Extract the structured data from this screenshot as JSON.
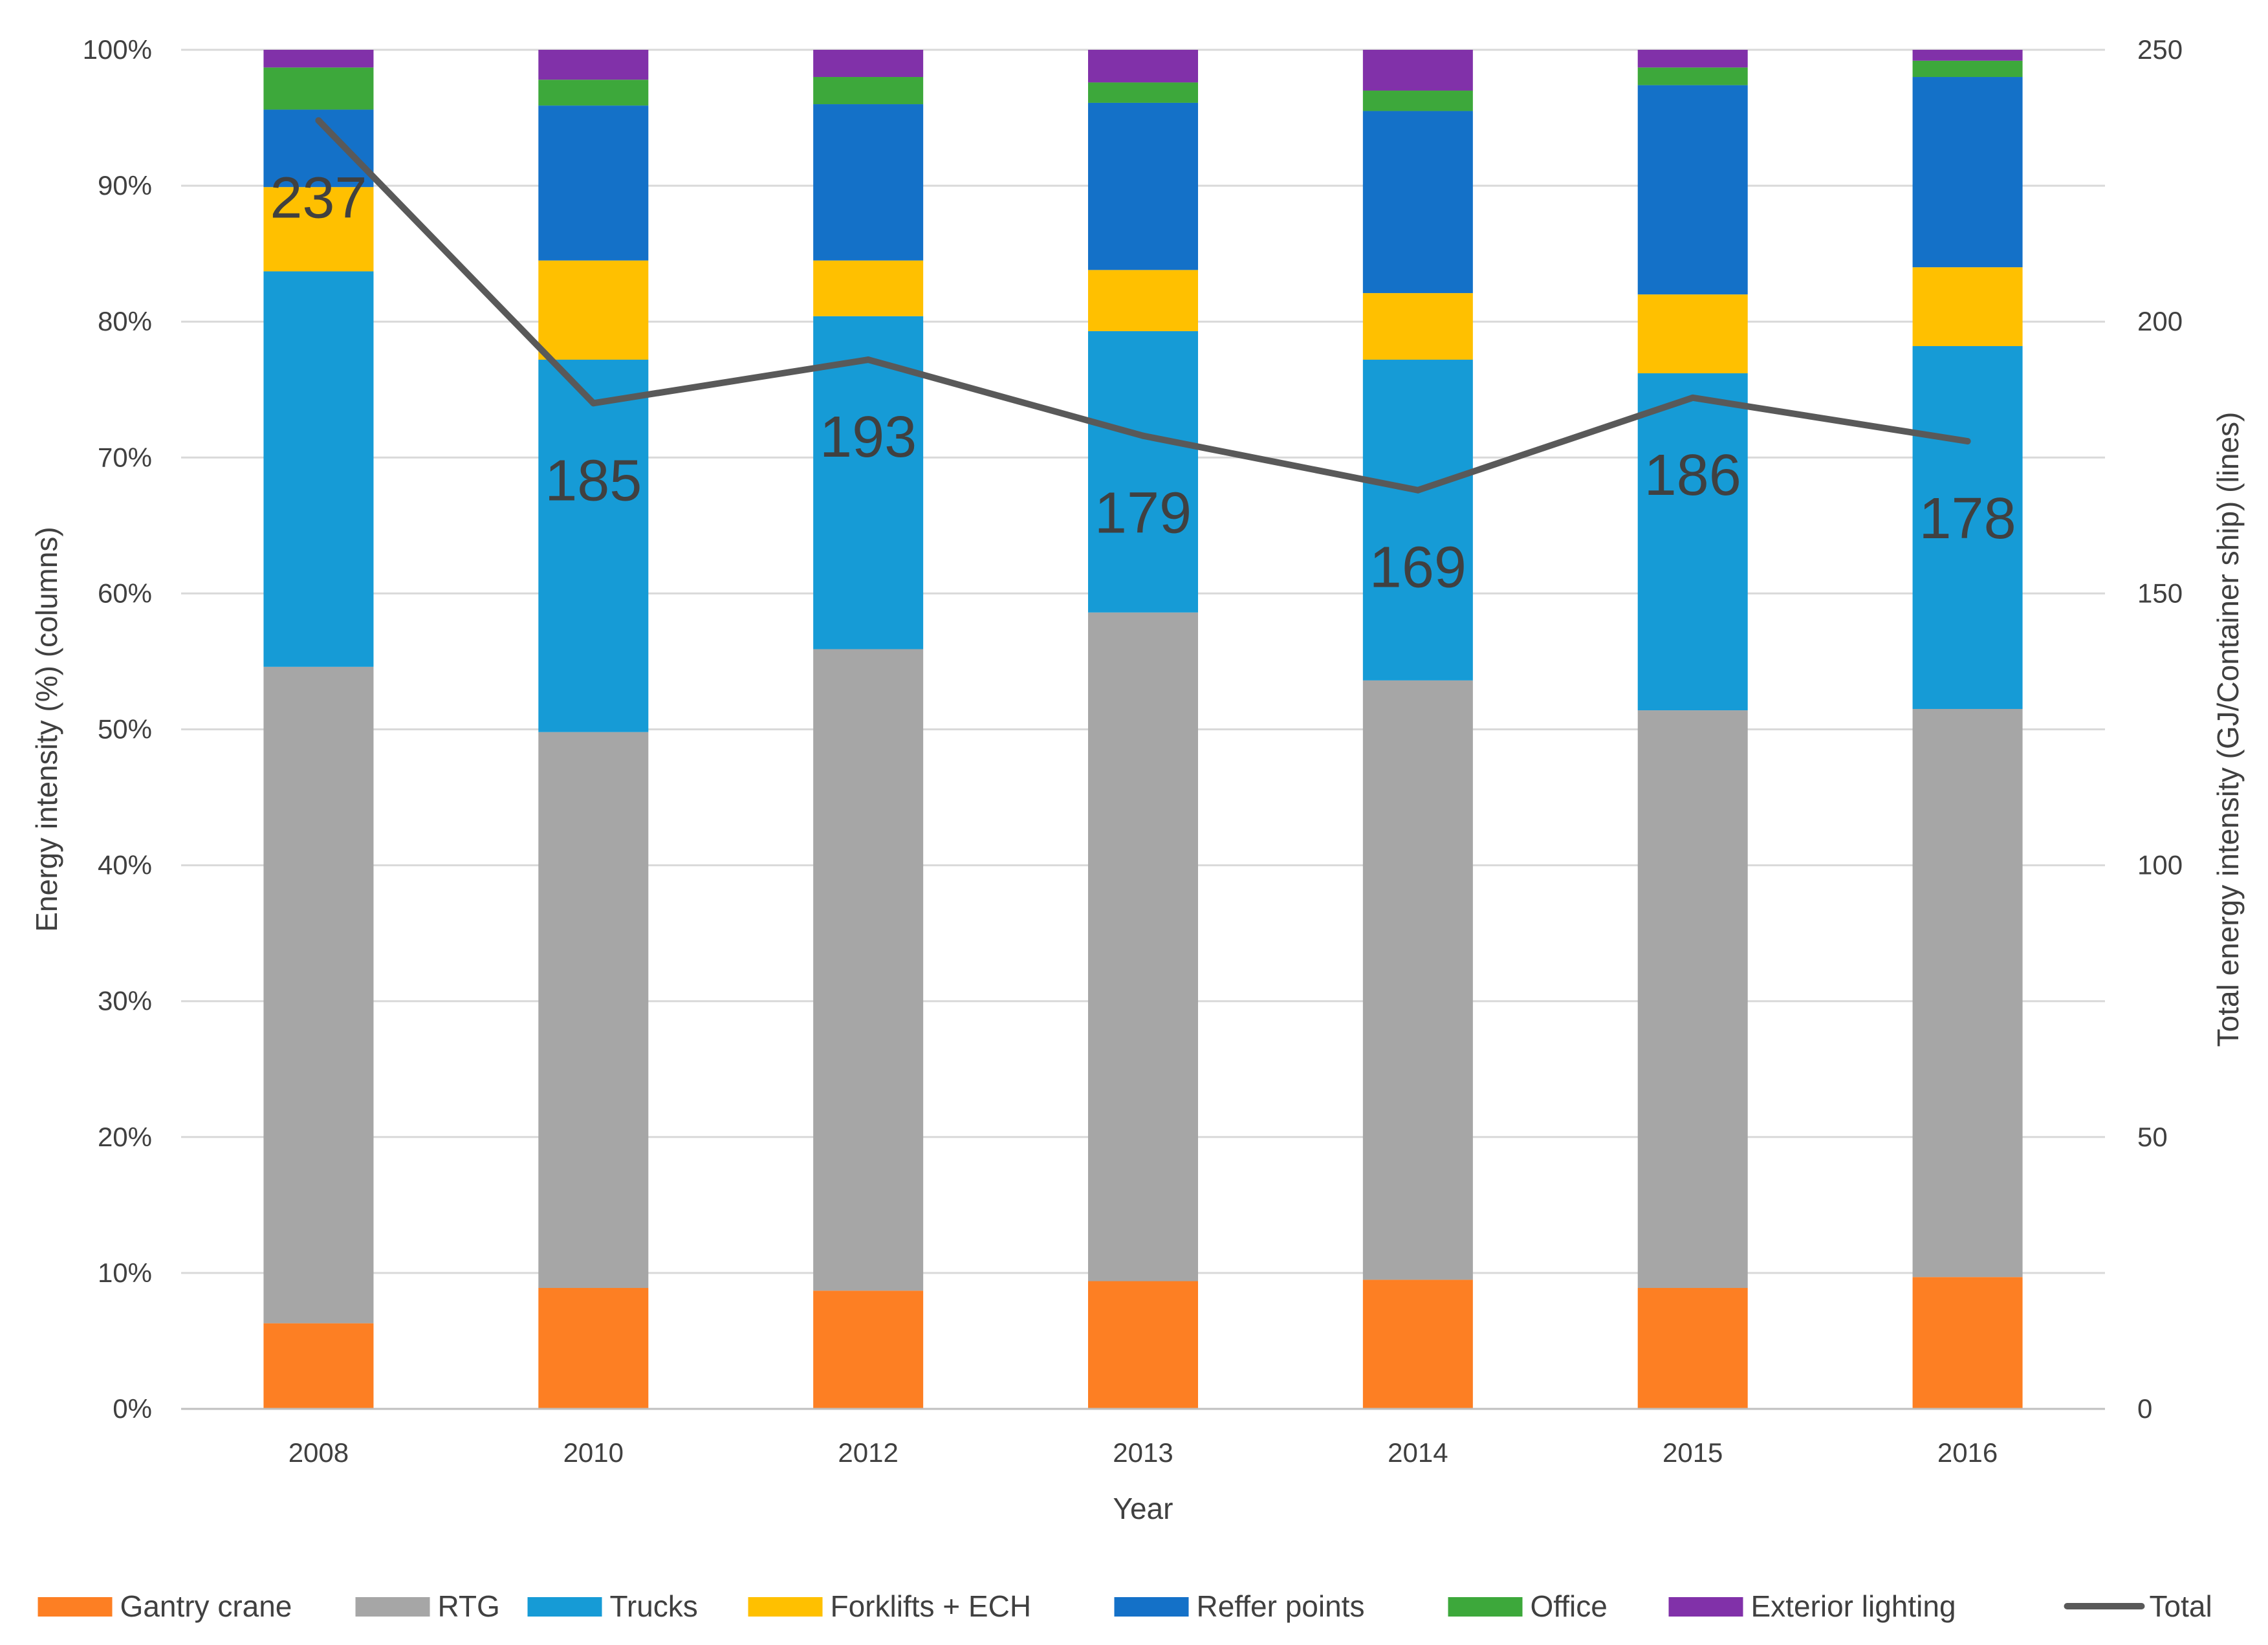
{
  "chart_data": {
    "type": "bar",
    "stacked": true,
    "categories": [
      "2008",
      "2010",
      "2012",
      "2013",
      "2014",
      "2015",
      "2016"
    ],
    "series": [
      {
        "name": "Gantry crane",
        "color": "#FD7F23",
        "values": [
          6.3,
          8.9,
          8.7,
          9.4,
          9.5,
          8.9,
          9.7
        ]
      },
      {
        "name": "RTG",
        "color": "#A6A6A6",
        "values": [
          48.3,
          40.9,
          47.2,
          49.2,
          44.1,
          42.5,
          41.8
        ]
      },
      {
        "name": "Trucks",
        "color": "#169BD6",
        "values": [
          29.1,
          27.4,
          24.5,
          20.7,
          23.6,
          24.8,
          26.7
        ]
      },
      {
        "name": "Forklifts + ECH",
        "color": "#FFC000",
        "values": [
          6.2,
          7.3,
          4.1,
          4.5,
          4.9,
          5.8,
          5.8
        ]
      },
      {
        "name": "Reffer points",
        "color": "#1471C8",
        "values": [
          5.7,
          11.4,
          11.5,
          12.3,
          13.4,
          15.4,
          14.0
        ]
      },
      {
        "name": "Office",
        "color": "#3DA83B",
        "values": [
          3.1,
          1.9,
          2.0,
          1.5,
          1.5,
          1.3,
          1.2
        ]
      },
      {
        "name": "Exterior lighting",
        "color": "#8131A9",
        "values": [
          1.3,
          2.2,
          2.0,
          2.4,
          3.0,
          1.3,
          0.8
        ]
      }
    ],
    "line": {
      "name": "Total",
      "color": "#595959",
      "values": [
        237,
        185,
        193,
        179,
        169,
        186,
        178
      ],
      "labels": [
        "237",
        "185",
        "193",
        "179",
        "169",
        "186",
        "178"
      ]
    },
    "xlabel": "Year",
    "ylabel": "Energy intensity (%) (columns)",
    "y2label": "Total energy intensity (GJ/Container ship) (lines)",
    "ylim": [
      0,
      100
    ],
    "y2lim": [
      0,
      250
    ],
    "yticks": [
      "0%",
      "10%",
      "20%",
      "30%",
      "40%",
      "50%",
      "60%",
      "70%",
      "80%",
      "90%",
      "100%"
    ],
    "y2ticks": [
      "0",
      "50",
      "100",
      "150",
      "200",
      "250"
    ],
    "grid": true,
    "legend_position": "bottom"
  }
}
